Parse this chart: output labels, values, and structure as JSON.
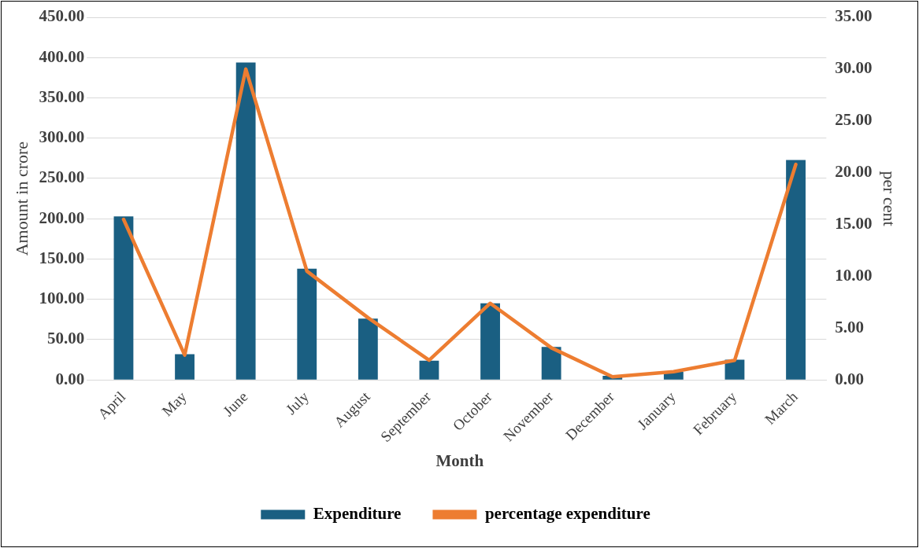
{
  "chart_data": {
    "type": "bar",
    "xlabel": "Month",
    "ylabel": "Amount in crore",
    "y2label": "per cent",
    "categories": [
      "April",
      "May",
      "June",
      "July",
      "August",
      "September",
      "October",
      "November",
      "December",
      "January",
      "February",
      "March"
    ],
    "series": [
      {
        "name": "Expenditure",
        "color": "#1a5f82",
        "values": [
          203,
          32,
          394,
          138,
          76,
          24,
          95,
          41,
          5,
          10,
          25,
          273
        ]
      },
      {
        "name": "percentage expenditure",
        "type": "line",
        "axis": "y2",
        "color": "#ed7d31",
        "marker": "none",
        "values": [
          15.5,
          2.4,
          30.0,
          10.5,
          6.0,
          1.9,
          7.4,
          3.1,
          0.3,
          0.8,
          1.9,
          20.8
        ]
      }
    ],
    "ylim": [
      0,
      450
    ],
    "yticks": [
      {
        "value": 0,
        "label": "0.00"
      },
      {
        "value": 50,
        "label": "50.00"
      },
      {
        "value": 100,
        "label": "100.00"
      },
      {
        "value": 150,
        "label": "150.00"
      },
      {
        "value": 200,
        "label": "200.00"
      },
      {
        "value": 250,
        "label": "250.00"
      },
      {
        "value": 300,
        "label": "300.00"
      },
      {
        "value": 350,
        "label": "350.00"
      },
      {
        "value": 400,
        "label": "400.00"
      },
      {
        "value": 450,
        "label": "450.00"
      }
    ],
    "y2lim": [
      0,
      35
    ],
    "y2ticks": [
      {
        "value": 0,
        "label": "0.00"
      },
      {
        "value": 5,
        "label": "5.00"
      },
      {
        "value": 10,
        "label": "10.00"
      },
      {
        "value": 15,
        "label": "15.00"
      },
      {
        "value": 20,
        "label": "20.00"
      },
      {
        "value": 25,
        "label": "25.00"
      },
      {
        "value": 30,
        "label": "30.00"
      },
      {
        "value": 35,
        "label": "35.00"
      }
    ],
    "grid": "y",
    "legend": "bottom"
  }
}
